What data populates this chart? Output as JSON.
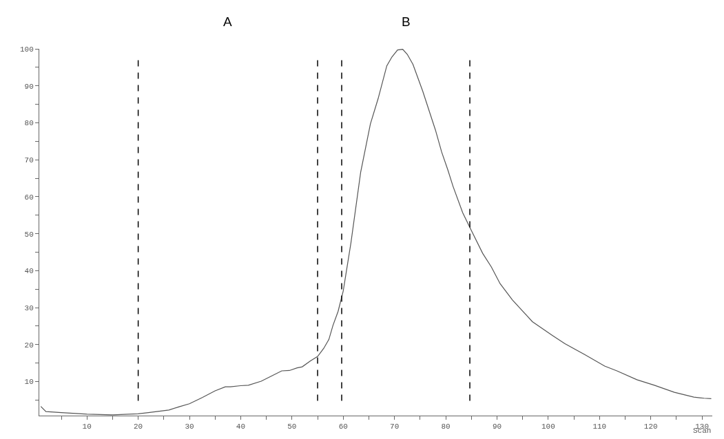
{
  "chart_data": {
    "type": "line",
    "xlabel": "Scan",
    "x": [
      1,
      2,
      5,
      10,
      15,
      20,
      22,
      26,
      28,
      30,
      32.5,
      35,
      37,
      38,
      40,
      41.5,
      44,
      46,
      48,
      49.5,
      51,
      52,
      53.6,
      55,
      56.2,
      57.2,
      58,
      59,
      60,
      61.5,
      63.4,
      65.3,
      66.8,
      68.5,
      69.5,
      70.6,
      71.6,
      72.5,
      73.6,
      75.5,
      78,
      79.2,
      80.4,
      81.4,
      83.3,
      84.7,
      87.2,
      88.9,
      90.6,
      93,
      96.9,
      100.8,
      103.2,
      107.1,
      111,
      113.4,
      117.3,
      120.7,
      124.6,
      128.4,
      130.4,
      131.8
    ],
    "series": [
      {
        "color": "#555555",
        "values": [
          3.3,
          1.9,
          1.6,
          1.2,
          1.0,
          1.3,
          1.6,
          2.3,
          3.2,
          4.0,
          5.7,
          7.5,
          8.6,
          8.6,
          8.9,
          9.0,
          10.1,
          11.5,
          12.9,
          13.0,
          13.7,
          14.0,
          15.6,
          16.8,
          19.0,
          21.4,
          25.2,
          29,
          34.5,
          47.5,
          66.6,
          79.7,
          86.5,
          95.4,
          97.8,
          99.7,
          99.9,
          98.5,
          95.8,
          88.6,
          78,
          72.1,
          67.3,
          62.9,
          55.7,
          51.7,
          44.7,
          41.0,
          36.5,
          32.1,
          26.2,
          22.5,
          20.3,
          17.3,
          14.2,
          12.9,
          10.5,
          9.0,
          7.1,
          5.8,
          5.5,
          5.4
        ]
      }
    ],
    "xlim": [
      0.7,
      132
    ],
    "ylim": [
      0.8,
      100
    ],
    "xticks": [
      {
        "value": 5,
        "label": null
      },
      10,
      {
        "value": 15,
        "label": null
      },
      20,
      {
        "value": 25,
        "label": null
      },
      30,
      {
        "value": 35,
        "label": null
      },
      40,
      {
        "value": 45,
        "label": null
      },
      50,
      {
        "value": 55,
        "label": null
      },
      60,
      {
        "value": 65,
        "label": null
      },
      70,
      {
        "value": 75,
        "label": null
      },
      80,
      {
        "value": 85,
        "label": null
      },
      90,
      {
        "value": 95,
        "label": null
      },
      100,
      {
        "value": 105,
        "label": null
      },
      110,
      {
        "value": 115,
        "label": null
      },
      120,
      {
        "value": 125,
        "label": null
      },
      130
    ],
    "yticks": [
      {
        "value": 5,
        "label": null
      },
      10,
      {
        "value": 15,
        "label": null
      },
      20,
      {
        "value": 25,
        "label": null
      },
      30,
      {
        "value": 35,
        "label": null
      },
      40,
      {
        "value": 45,
        "label": null
      },
      50,
      {
        "value": 55,
        "label": null
      },
      60,
      {
        "value": 65,
        "label": null
      },
      70,
      {
        "value": 75,
        "label": null
      },
      80,
      {
        "value": 85,
        "label": null
      },
      90,
      {
        "value": 95,
        "label": null
      },
      100
    ],
    "ref_lines": [
      {
        "axis": "x",
        "value": 20,
        "color": "#000000",
        "line_style": "dashed"
      },
      {
        "axis": "x",
        "value": 55,
        "color": "#000000",
        "line_style": "dashed"
      },
      {
        "axis": "x",
        "value": 59.7,
        "color": "#000000",
        "line_style": "dashed"
      },
      {
        "axis": "x",
        "value": 84.7,
        "color": "#000000",
        "line_style": "dashed"
      }
    ],
    "annotations": [
      "A",
      "B"
    ],
    "marker": "none",
    "line_style": "solid"
  }
}
